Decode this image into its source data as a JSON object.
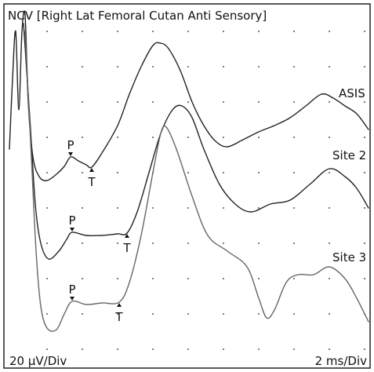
{
  "title": "NCV [Right Lat Femoral Cutan Anti Sensory]",
  "traces": [
    {
      "label": "ASIS",
      "markers": [
        "P",
        "T"
      ]
    },
    {
      "label": "Site 2",
      "markers": [
        "P",
        "T"
      ]
    },
    {
      "label": "Site 3",
      "markers": [
        "P",
        "T"
      ]
    }
  ],
  "footer": {
    "amplitude_scale": "20 µV/Div",
    "time_scale": "2 ms/Div"
  }
}
